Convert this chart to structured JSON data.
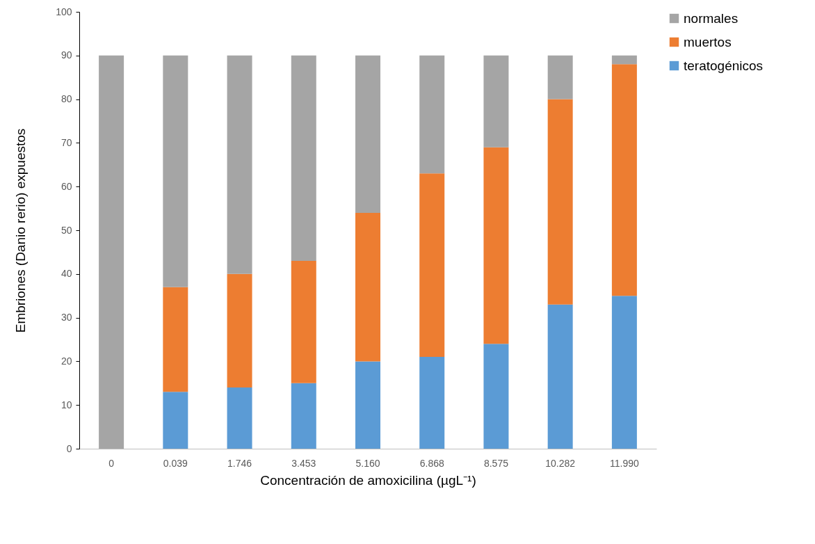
{
  "chart_data": {
    "type": "bar",
    "stacked": true,
    "xlabel": "Concentración de amoxicilina (µgL⁻¹)",
    "ylabel": "Embriones (Danio rerio) expuestos",
    "categories": [
      "0",
      "0.039",
      "1.746",
      "3.453",
      "5.160",
      "6.868",
      "8.575",
      "10.282",
      "11.990"
    ],
    "series": [
      {
        "name": "teratogénicos",
        "color": "#5b9bd5",
        "values": [
          0,
          13,
          14,
          15,
          20,
          21,
          24,
          33,
          35
        ]
      },
      {
        "name": "muertos",
        "color": "#ed7d31",
        "values": [
          0,
          24,
          26,
          28,
          34,
          42,
          45,
          47,
          53
        ]
      },
      {
        "name": "normales",
        "color": "#a5a5a5",
        "values": [
          90,
          53,
          50,
          47,
          36,
          27,
          21,
          10,
          2
        ]
      }
    ],
    "ylim": [
      0,
      100
    ],
    "yticks": [
      0,
      10,
      20,
      30,
      40,
      50,
      60,
      70,
      80,
      90,
      100
    ],
    "grid": false,
    "legend": "right"
  }
}
